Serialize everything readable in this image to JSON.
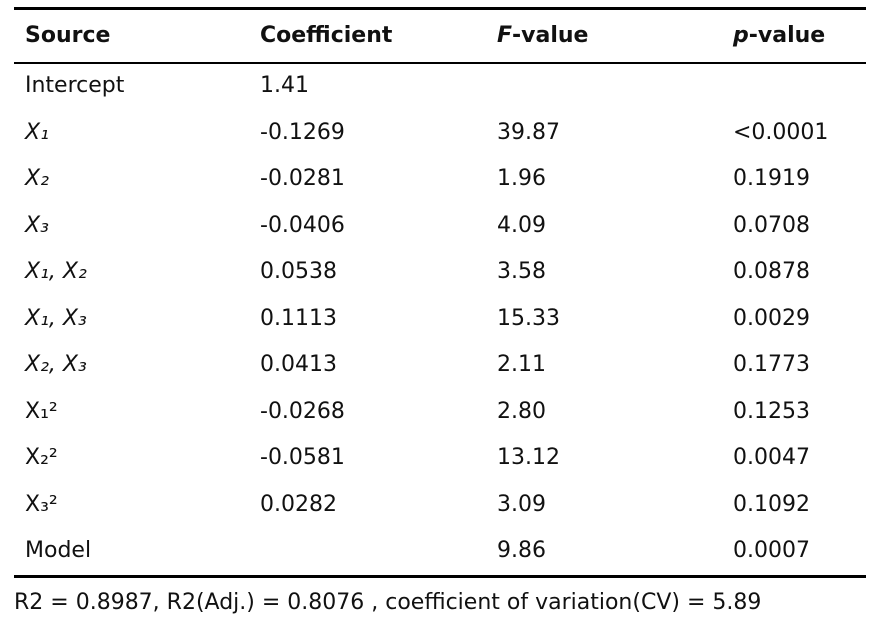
{
  "table": {
    "header": [
      "Source",
      "Coefficient",
      {
        "italic": "F",
        "rest": "-value"
      },
      {
        "italic": "p",
        "rest": "-value"
      }
    ],
    "rows": [
      [
        "Intercept",
        "1.41",
        null,
        null
      ],
      [
        "X₁",
        "-0.1269",
        "39.87",
        "<0.0001"
      ],
      [
        "X₂",
        "-0.0281",
        "1.96",
        "0.1919"
      ],
      [
        "X₃",
        "-0.0406",
        "4.09",
        "0.0708"
      ],
      [
        "X₁, X₂",
        "0.0538",
        "3.58",
        "0.0878"
      ],
      [
        "X₁, X₃",
        "0.1113",
        "15.33",
        "0.0029"
      ],
      [
        "X₂, X₃",
        "0.0413",
        "2.11",
        "0.1773"
      ],
      [
        "X₁²",
        "-0.0268",
        "2.80",
        "0.1253"
      ],
      [
        "X₂²",
        "-0.0581",
        "13.12",
        "0.0047"
      ],
      [
        "X₃²",
        "0.0282",
        "3.09",
        "0.1092"
      ],
      [
        "Model",
        null,
        "9.86",
        "0.0007"
      ]
    ]
  },
  "note": "R2 = 0.8987, R2(Adj.) = 0.8076 , coefficient of variation(CV) = 5.89"
}
